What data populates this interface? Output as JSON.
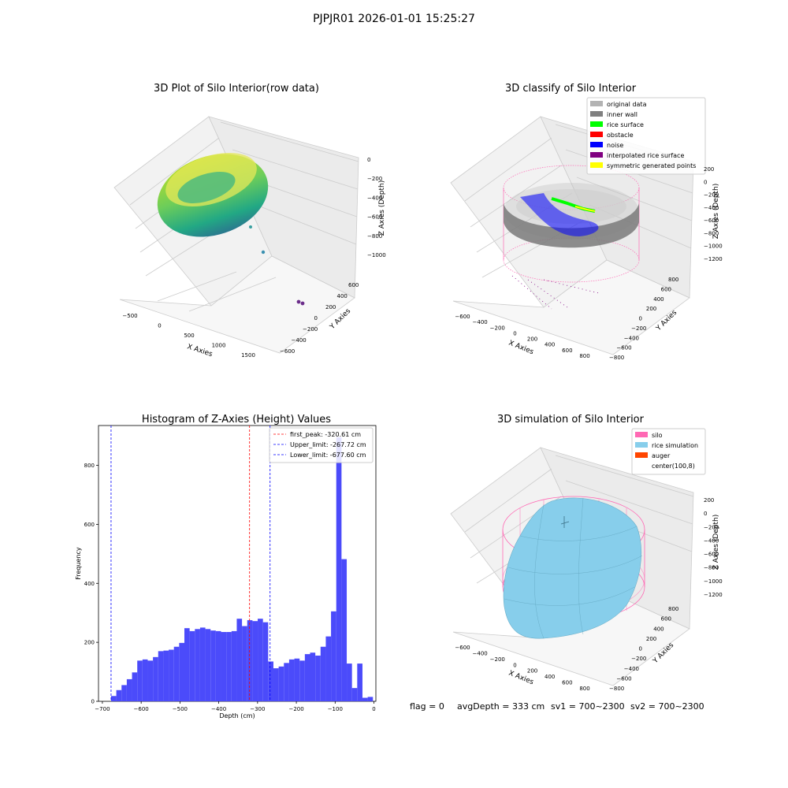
{
  "suptitle": "PJPJR01 2026-01-01 15:25:27",
  "footer": {
    "flag": "flag = 0",
    "avg_depth": "avgDepth = 333 cm",
    "sv1": "sv1 = 700~2300",
    "sv2": "sv2 = 700~2300"
  },
  "colors": {
    "histogram_bar": "#4b4bfa",
    "first_peak_line": "#ff0000",
    "limit_line": "#0000ff",
    "silo": "#ff69b4",
    "rice_simulation": "#87ceeb",
    "auger": "#ff4500",
    "original_data": "#b3b3b3",
    "inner_wall": "#808080",
    "rice_surface": "#00ff00",
    "obstacle": "#ff0000",
    "noise": "#0000ff",
    "interpolated_rice_surface": "#800080",
    "symmetric_generated_points": "#ffff00"
  },
  "chart_data": [
    {
      "id": "raw3d",
      "type": "scatter",
      "title": "3D Plot of Silo Interior(row data)",
      "xlabel": "X Axies",
      "ylabel": "Y Axies",
      "zlabel": "Z Axies (Depth)",
      "xticks": [
        "-500",
        "0",
        "500",
        "1000",
        "1500"
      ],
      "yticks": [
        "600",
        "400",
        "200",
        "0",
        "-200",
        "-400",
        "-600"
      ],
      "zticks": [
        "0",
        "-200",
        "-400",
        "-600",
        "-800",
        "-1000"
      ]
    },
    {
      "id": "classify3d",
      "type": "scatter",
      "title": "3D classify of Silo Interior",
      "xlabel": "X Axies",
      "ylabel": "Y Axies",
      "zlabel": "Z Axies (Depth)",
      "xticks": [
        "-600",
        "-400",
        "-200",
        "0",
        "200",
        "400",
        "600",
        "800"
      ],
      "yticks": [
        "800",
        "600",
        "400",
        "200",
        "0",
        "-200",
        "-400",
        "-600",
        "-800"
      ],
      "zticks": [
        "200",
        "0",
        "-200",
        "-400",
        "-600",
        "-800",
        "-1000",
        "-1200"
      ],
      "legend": [
        {
          "label": "original data",
          "color": "#b3b3b3"
        },
        {
          "label": "inner wall",
          "color": "#808080"
        },
        {
          "label": "rice surface",
          "color": "#00ff00"
        },
        {
          "label": "obstacle",
          "color": "#ff0000"
        },
        {
          "label": "noise",
          "color": "#0000ff"
        },
        {
          "label": "interpolated rice surface",
          "color": "#800080"
        },
        {
          "label": "symmetric generated points",
          "color": "#ffff00"
        }
      ]
    },
    {
      "id": "histogram",
      "type": "bar",
      "title": "Histogram of Z-Axies (Height) Values",
      "xlabel": "Depth (cm)",
      "ylabel": "Frequency",
      "xlim": [
        -710,
        5
      ],
      "ylim": [
        0,
        935
      ],
      "xticks": [
        -700,
        -600,
        -500,
        -400,
        -300,
        -200,
        -100,
        0
      ],
      "yticks": [
        0,
        200,
        400,
        600,
        800
      ],
      "bin_start": -677.6,
      "bin_width": 13.5,
      "values": [
        18,
        38,
        55,
        75,
        98,
        138,
        142,
        138,
        150,
        170,
        172,
        175,
        185,
        198,
        248,
        238,
        245,
        250,
        245,
        240,
        238,
        235,
        235,
        238,
        280,
        255,
        275,
        272,
        280,
        268,
        135,
        112,
        118,
        130,
        142,
        145,
        138,
        160,
        165,
        155,
        185,
        220,
        305,
        895,
        482,
        128,
        45,
        128,
        12,
        15
      ],
      "vlines": [
        {
          "value": -320.61,
          "color": "#ff0000",
          "label": "first_peak: -320.61 cm"
        },
        {
          "value": -267.72,
          "color": "#0000ff",
          "label": "Upper_limit: -267.72 cm"
        },
        {
          "value": -677.6,
          "color": "#0000ff",
          "label": "Lower_limit: -677.60 cm"
        }
      ],
      "legend_position": "top-right"
    },
    {
      "id": "simulation3d",
      "type": "scatter",
      "title": "3D simulation of Silo Interior",
      "xlabel": "X Axies",
      "ylabel": "Y Axies",
      "zlabel": "Z Axies (Depth)",
      "xticks": [
        "-600",
        "-400",
        "-200",
        "0",
        "200",
        "400",
        "600",
        "800"
      ],
      "yticks": [
        "800",
        "600",
        "400",
        "200",
        "0",
        "-200",
        "-400",
        "-600",
        "-800"
      ],
      "zticks": [
        "200",
        "0",
        "-200",
        "-400",
        "-600",
        "-800",
        "-1000",
        "-1200"
      ],
      "legend": [
        {
          "label": "silo",
          "color": "#ff69b4"
        },
        {
          "label": "rice simulation",
          "color": "#87ceeb"
        },
        {
          "label": "auger",
          "color": "#ff4500"
        },
        {
          "label": "center(100,8)",
          "color": "#ffffff"
        }
      ]
    }
  ]
}
